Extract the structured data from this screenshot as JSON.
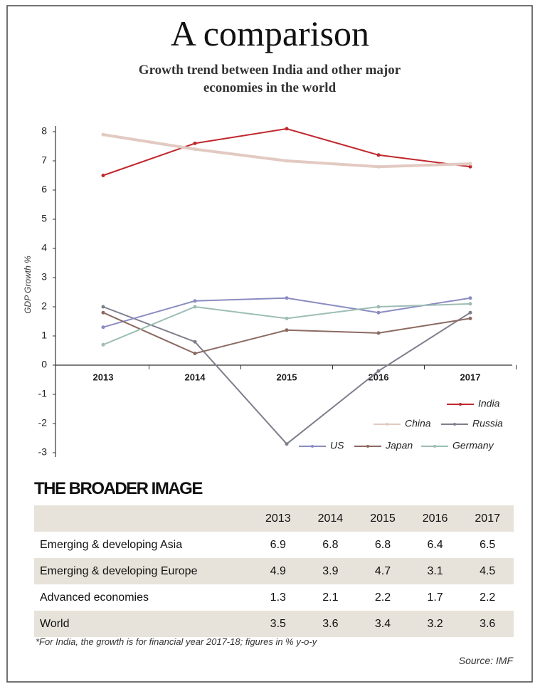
{
  "chart_data": {
    "type": "line",
    "title": "A comparison",
    "subtitle": "Growth trend between India and other major economies in the world",
    "y_label": "GDP Growth %",
    "categories": [
      "2013",
      "2014",
      "2015",
      "2016",
      "2017"
    ],
    "series": [
      {
        "name": "India",
        "color": "#c0282d",
        "values": [
          6.5,
          7.6,
          8.1,
          7.2,
          6.8
        ]
      },
      {
        "name": "China",
        "color": "#e2cac2",
        "values": [
          7.9,
          7.4,
          7.0,
          6.8,
          6.9
        ]
      },
      {
        "name": "Russia",
        "color": "#7e7f8c",
        "values": [
          2.0,
          0.8,
          -2.7,
          -0.2,
          1.8
        ]
      },
      {
        "name": "US",
        "color": "#8a8cc2",
        "values": [
          1.3,
          2.2,
          2.3,
          1.8,
          2.3
        ]
      },
      {
        "name": "Japan",
        "color": "#8c6a62",
        "values": [
          1.8,
          0.4,
          1.2,
          1.1,
          1.6
        ]
      },
      {
        "name": "Germany",
        "color": "#9dbdb4",
        "values": [
          0.7,
          2.0,
          1.6,
          2.0,
          2.1
        ]
      }
    ],
    "ylim": [
      -3,
      8
    ],
    "yticks": [
      -3,
      -2,
      -1,
      0,
      1,
      2,
      3,
      4,
      5,
      6,
      7,
      8
    ],
    "grid": false
  },
  "table": {
    "title": "THE BROADER IMAGE",
    "header": [
      "",
      "2013",
      "2014",
      "2015",
      "2016",
      "2017"
    ],
    "rows": [
      [
        "Emerging & developing Asia",
        6.9,
        6.8,
        6.8,
        6.4,
        6.5
      ],
      [
        "Emerging & developing Europe",
        4.9,
        3.9,
        4.7,
        3.1,
        4.5
      ],
      [
        "Advanced economies",
        1.3,
        2.1,
        2.2,
        1.7,
        2.2
      ],
      [
        "World",
        3.5,
        3.6,
        3.4,
        3.2,
        3.6
      ]
    ],
    "footnote": "*For India, the growth is for financial year 2017-18; figures in % y-o-y",
    "source": "Source: IMF"
  }
}
